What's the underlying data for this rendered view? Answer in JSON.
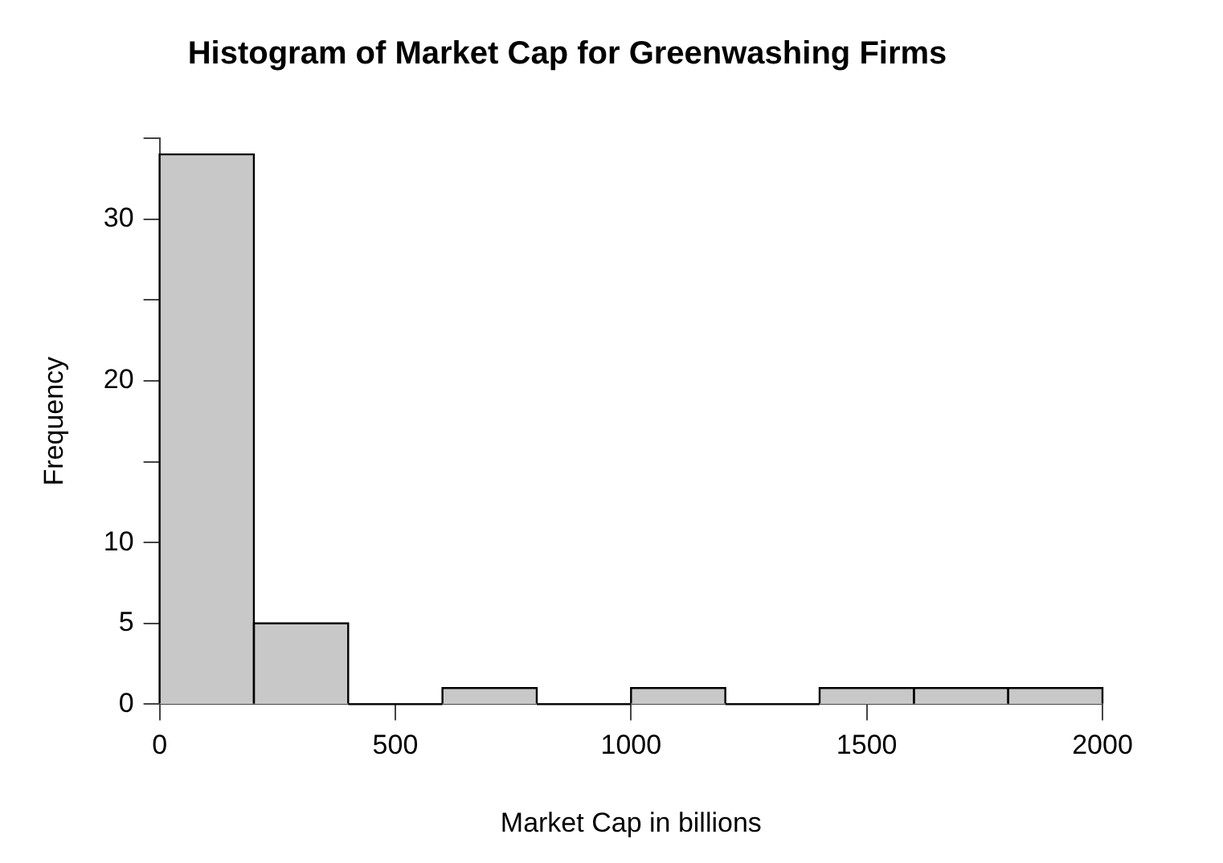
{
  "chart_data": {
    "type": "histogram",
    "title": "Histogram of Market Cap for Greenwashing Firms",
    "xlabel": "Market Cap in billions",
    "ylabel": "Frequency",
    "bins": [
      0,
      200,
      400,
      600,
      800,
      1000,
      1200,
      1400,
      1600,
      1800,
      2000
    ],
    "values": [
      34,
      5,
      0,
      1,
      0,
      1,
      0,
      1,
      1,
      1
    ],
    "color": "#c8c8c8",
    "xlim": [
      0,
      2000
    ],
    "xticks": [
      0,
      500,
      1000,
      1500,
      2000
    ],
    "ylim": [
      0,
      35
    ],
    "yticks": [
      0,
      5,
      10,
      {
        "value": 15,
        "label": null
      },
      20,
      {
        "value": 25,
        "label": null
      },
      30,
      {
        "value": 35,
        "label": null
      }
    ]
  }
}
